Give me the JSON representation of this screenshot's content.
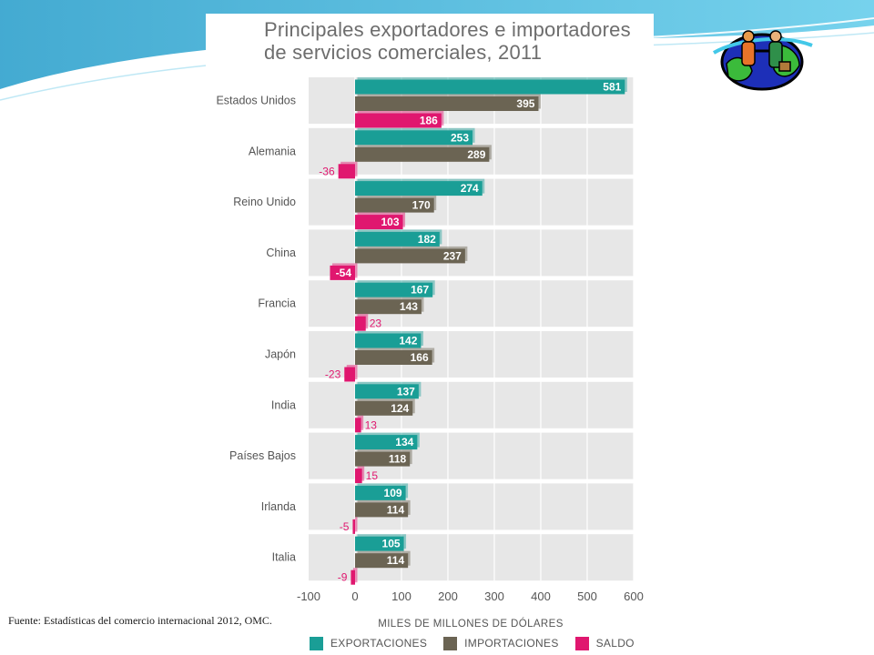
{
  "colors": {
    "exportaciones": "#1a9e96",
    "importaciones": "#6b6453",
    "saldo": "#e0176f",
    "row_background": "#e7e7e7",
    "grid": "#ffffff",
    "axis_text": "#555555",
    "category_text": "#555555"
  },
  "source_note": "Fuente: Estadísticas del comercio internacional 2012, OMC.",
  "chart_data": {
    "type": "bar",
    "orientation": "horizontal",
    "title_lines": [
      "Principales exportadores e importadores",
      "de servicios comerciales, 2011"
    ],
    "categories": [
      "Estados Unidos",
      "Alemania",
      "Reino Unido",
      "China",
      "Francia",
      "Japón",
      "India",
      "Países Bajos",
      "Irlanda",
      "Italia"
    ],
    "series": [
      {
        "name": "EXPORTACIONES",
        "key": "exportaciones",
        "values": [
          581,
          253,
          274,
          182,
          167,
          142,
          137,
          134,
          109,
          105
        ]
      },
      {
        "name": "IMPORTACIONES",
        "key": "importaciones",
        "values": [
          395,
          289,
          170,
          237,
          143,
          166,
          124,
          118,
          114,
          114
        ]
      },
      {
        "name": "SALDO",
        "key": "saldo",
        "values": [
          186,
          -36,
          103,
          -54,
          23,
          -23,
          13,
          15,
          -5,
          -9
        ]
      }
    ],
    "xlabel": "MILES DE MILLONES DE DÓLARES",
    "xlim": [
      -100,
      600
    ],
    "xticks": [
      -100,
      0,
      100,
      200,
      300,
      400,
      500,
      600
    ],
    "grid": true,
    "legend": "bottom"
  }
}
